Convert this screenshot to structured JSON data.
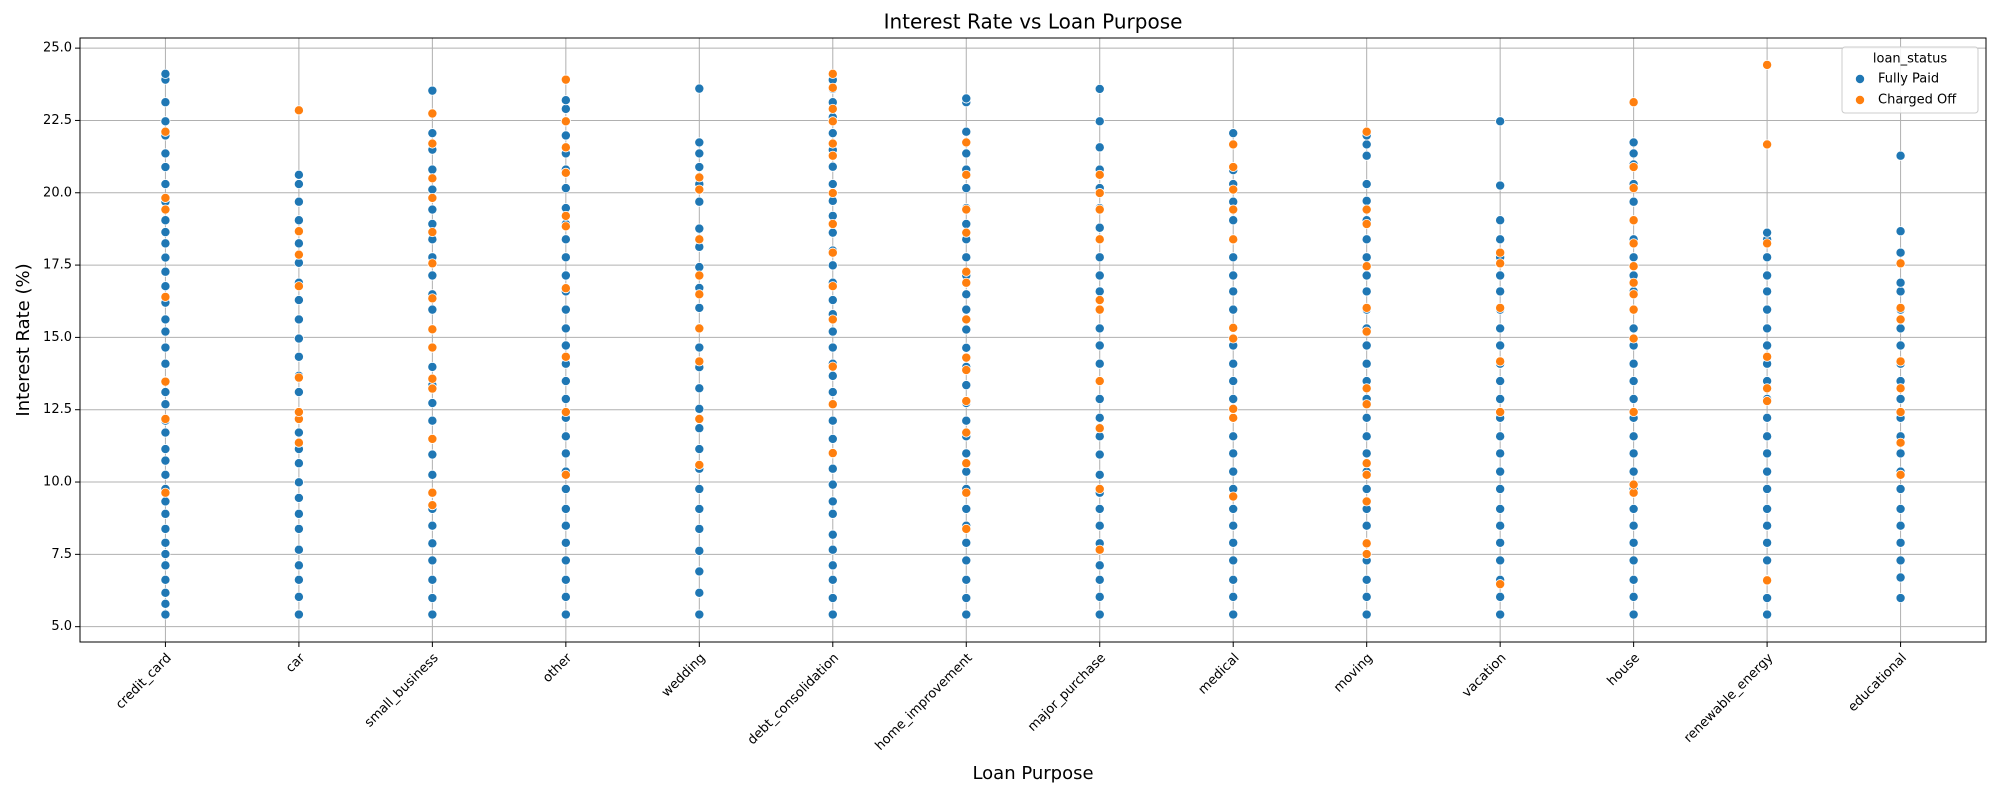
{
  "chart_data": {
    "type": "scatter",
    "title": "Interest Rate vs Loan Purpose",
    "xlabel": "Loan Purpose",
    "ylabel": "Interest Rate (%)",
    "legend_title": "loan_status",
    "legend": "upper right",
    "grid": true,
    "categories": [
      "credit_card",
      "car",
      "small_business",
      "other",
      "wedding",
      "debt_consolidation",
      "home_improvement",
      "major_purchase",
      "medical",
      "moving",
      "vacation",
      "house",
      "renewable_energy",
      "educational"
    ],
    "ylim": [
      4.47,
      25.35
    ],
    "yticks": [
      {
        "value": 5,
        "label": "5.0"
      },
      7.5,
      {
        "value": 10,
        "label": "10.0"
      },
      12.5,
      {
        "value": 15,
        "label": "15.0"
      },
      17.5,
      {
        "value": 20,
        "label": "20.0"
      },
      22.5,
      {
        "value": 25,
        "label": "25.0"
      }
    ],
    "series": [
      {
        "name": "Fully Paid",
        "color": "#1f77b4",
        "values": [
          [
            5.42,
            5.79,
            6.17,
            6.62,
            7.12,
            7.51,
            7.9,
            8.38,
            8.9,
            9.33,
            9.76,
            10.25,
            10.74,
            11.14,
            11.71,
            12.12,
            12.69,
            13.11,
            13.49,
            14.09,
            14.65,
            15.2,
            15.62,
            16.2,
            16.77,
            17.27,
            17.76,
            18.25,
            18.64,
            19.05,
            19.69,
            20.3,
            20.89,
            21.36,
            21.98,
            22.47,
            23.13,
            23.91,
            24.11
          ],
          [
            5.42,
            6.03,
            6.62,
            7.12,
            7.66,
            8.38,
            8.9,
            9.45,
            9.99,
            10.65,
            11.14,
            11.71,
            12.42,
            13.11,
            13.67,
            14.33,
            14.96,
            15.62,
            16.29,
            16.89,
            17.58,
            18.25,
            19.05,
            19.69,
            20.3,
            20.62
          ],
          [
            5.42,
            5.99,
            6.62,
            7.29,
            7.88,
            8.49,
            9.07,
            9.63,
            10.25,
            10.95,
            11.49,
            12.12,
            12.73,
            13.35,
            13.98,
            14.64,
            15.27,
            15.96,
            16.49,
            17.14,
            17.77,
            18.39,
            18.92,
            19.42,
            20.11,
            20.8,
            21.49,
            22.06,
            22.74,
            23.53
          ],
          [
            5.42,
            6.03,
            6.62,
            7.29,
            7.9,
            8.49,
            9.07,
            9.76,
            10.36,
            10.99,
            11.58,
            12.22,
            12.87,
            13.49,
            14.09,
            14.72,
            15.31,
            15.96,
            16.59,
            17.14,
            17.77,
            18.39,
            18.92,
            19.47,
            20.16,
            20.8,
            21.36,
            21.98,
            22.47,
            22.9,
            23.2
          ],
          [
            5.42,
            6.17,
            6.91,
            7.62,
            8.38,
            9.07,
            9.76,
            10.46,
            11.14,
            11.86,
            12.53,
            13.24,
            13.97,
            14.65,
            15.33,
            16.02,
            16.71,
            17.43,
            18.13,
            18.76,
            19.69,
            20.3,
            20.89,
            21.36,
            21.74,
            23.6
          ],
          [
            5.42,
            5.99,
            6.62,
            7.12,
            7.66,
            8.18,
            8.9,
            9.33,
            9.91,
            10.46,
            10.99,
            11.49,
            12.12,
            12.69,
            13.11,
            13.67,
            14.09,
            14.65,
            15.2,
            15.8,
            16.29,
            16.89,
            17.49,
            18.0,
            18.62,
            19.2,
            19.72,
            20.3,
            20.9,
            21.48,
            22.06,
            22.61,
            23.13,
            23.59,
            23.9
          ],
          [
            5.42,
            5.99,
            6.62,
            7.29,
            7.9,
            8.49,
            9.07,
            9.76,
            10.36,
            10.99,
            11.58,
            12.12,
            12.73,
            13.35,
            13.98,
            14.64,
            15.27,
            15.96,
            16.49,
            17.14,
            17.77,
            18.39,
            18.92,
            19.47,
            20.16,
            20.8,
            21.36,
            22.11,
            23.13,
            23.26
          ],
          [
            5.42,
            6.03,
            6.62,
            7.12,
            7.88,
            8.49,
            9.07,
            9.63,
            10.25,
            10.95,
            11.58,
            12.22,
            12.87,
            13.49,
            14.09,
            14.72,
            15.31,
            15.96,
            16.59,
            17.14,
            17.77,
            18.39,
            18.79,
            19.47,
            20.16,
            20.8,
            21.57,
            22.47,
            23.59
          ],
          [
            5.42,
            6.03,
            6.62,
            7.29,
            7.9,
            8.49,
            9.07,
            9.76,
            10.36,
            10.99,
            11.58,
            12.22,
            12.87,
            13.49,
            14.09,
            14.72,
            15.31,
            15.96,
            16.59,
            17.14,
            17.77,
            18.39,
            19.05,
            19.69,
            20.3,
            20.78,
            22.06
          ],
          [
            5.42,
            6.03,
            6.62,
            7.29,
            7.9,
            8.49,
            9.07,
            9.76,
            10.36,
            10.99,
            11.58,
            12.22,
            12.87,
            13.49,
            14.09,
            14.72,
            15.31,
            15.96,
            16.59,
            17.14,
            17.77,
            18.39,
            19.05,
            19.72,
            20.3,
            21.28,
            21.67,
            21.98
          ],
          [
            5.42,
            6.03,
            6.62,
            7.29,
            7.9,
            8.49,
            9.07,
            9.76,
            10.36,
            10.99,
            11.58,
            12.22,
            12.87,
            13.49,
            14.09,
            14.72,
            15.31,
            15.96,
            16.59,
            17.14,
            17.77,
            18.39,
            19.05,
            20.25,
            22.47
          ],
          [
            5.42,
            6.03,
            6.62,
            7.29,
            7.9,
            8.49,
            9.07,
            9.76,
            10.36,
            10.99,
            11.58,
            12.22,
            12.87,
            13.49,
            14.09,
            14.72,
            15.31,
            15.96,
            16.59,
            17.14,
            17.77,
            18.39,
            19.05,
            19.69,
            20.3,
            20.98,
            21.36,
            21.74
          ],
          [
            5.42,
            5.99,
            6.62,
            7.29,
            7.9,
            8.49,
            9.07,
            9.76,
            10.36,
            10.99,
            11.58,
            12.22,
            12.87,
            13.49,
            14.09,
            14.72,
            15.31,
            15.96,
            16.59,
            17.14,
            17.77,
            18.39,
            18.62
          ],
          [
            5.99,
            6.7,
            7.29,
            7.9,
            8.49,
            9.07,
            9.76,
            10.36,
            10.99,
            11.58,
            12.22,
            12.87,
            13.49,
            14.09,
            14.72,
            15.31,
            15.96,
            16.59,
            16.89,
            17.93,
            18.67,
            21.28
          ]
        ]
      },
      {
        "name": "Charged Off",
        "color": "#ff7f0e",
        "values": [
          [
            9.63,
            12.18,
            13.47,
            16.4,
            19.42,
            19.82,
            22.11
          ],
          [
            11.36,
            12.18,
            12.42,
            13.61,
            16.77,
            17.86,
            18.67,
            22.85
          ],
          [
            9.2,
            9.63,
            11.49,
            13.23,
            13.57,
            14.65,
            15.28,
            16.35,
            17.56,
            18.64,
            19.82,
            20.5,
            21.7,
            22.74
          ],
          [
            10.25,
            12.42,
            14.33,
            16.7,
            18.84,
            19.2,
            20.69,
            21.57,
            22.47,
            23.91
          ],
          [
            10.59,
            12.18,
            14.17,
            15.31,
            16.49,
            17.14,
            18.39,
            20.11,
            20.53
          ],
          [
            11.0,
            12.69,
            13.99,
            15.62,
            16.77,
            17.93,
            18.92,
            19.99,
            21.28,
            21.7,
            22.47,
            22.9,
            23.63,
            24.11
          ],
          [
            8.38,
            9.63,
            10.65,
            11.71,
            12.8,
            13.87,
            14.3,
            15.62,
            16.89,
            17.27,
            18.62,
            19.42,
            20.62,
            21.74
          ],
          [
            7.66,
            9.76,
            11.86,
            13.49,
            15.96,
            16.29,
            18.39,
            19.42,
            19.99,
            20.62
          ],
          [
            9.5,
            12.22,
            12.53,
            14.96,
            15.33,
            18.39,
            19.42,
            20.11,
            20.89,
            21.67
          ],
          [
            7.51,
            7.88,
            9.33,
            10.25,
            10.65,
            12.69,
            13.24,
            15.2,
            16.02,
            17.46,
            18.92,
            19.42,
            22.11
          ],
          [
            6.47,
            12.42,
            14.17,
            16.02,
            17.56,
            17.93
          ],
          [
            9.63,
            9.91,
            12.42,
            14.96,
            15.96,
            16.49,
            16.89,
            17.46,
            18.25,
            19.05,
            20.16,
            20.89,
            23.13
          ],
          [
            6.6,
            12.8,
            13.24,
            14.33,
            18.25,
            21.67,
            24.42
          ],
          [
            10.25,
            11.36,
            12.42,
            13.24,
            14.17,
            15.62,
            16.02,
            17.56
          ]
        ]
      }
    ]
  }
}
